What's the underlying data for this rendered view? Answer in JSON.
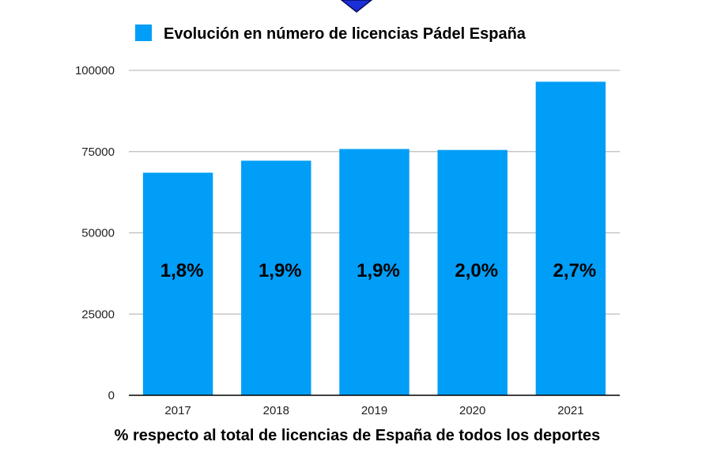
{
  "colors": {
    "bar": "#009ef7",
    "grid": "#bdbdbd",
    "axis": "#000000",
    "marker": "#1a2fd6"
  },
  "chart_data": {
    "type": "bar",
    "categories": [
      "2017",
      "2018",
      "2019",
      "2020",
      "2021"
    ],
    "series": [
      {
        "name": "Evolución en número de licencias Pádel España",
        "values": [
          68500,
          72200,
          75800,
          75500,
          96500
        ],
        "labels": [
          "1,8%",
          "1,9%",
          "1,9%",
          "2,0%",
          "2,7%"
        ]
      }
    ],
    "xlabel": "% respecto al total de licencias de España de todos los deportes",
    "ylabel": "",
    "ylim": [
      0,
      100000
    ],
    "yticks": [
      0,
      25000,
      50000,
      75000,
      100000
    ],
    "grid": true,
    "legend_position": "top"
  }
}
